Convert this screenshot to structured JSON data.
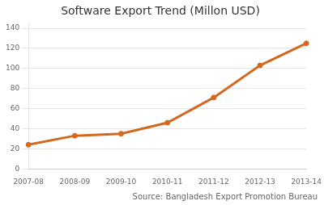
{
  "chart_data": {
    "type": "line",
    "title": "Software Export Trend (Millon USD)",
    "categories": [
      "2007-08",
      "2008-09",
      "2009-10",
      "2010-11",
      "2011-12",
      "2012-13",
      "2013-14"
    ],
    "values": [
      24,
      33,
      35,
      46,
      71,
      103,
      125
    ],
    "color": "#D2691E",
    "marker": "circle",
    "ylim": [
      0,
      145
    ],
    "yticks": [
      0,
      20,
      40,
      60,
      80,
      100,
      120,
      140
    ],
    "grid": true,
    "annotations": [
      "Source: Bangladesh Export Promotion Bureau"
    ]
  }
}
